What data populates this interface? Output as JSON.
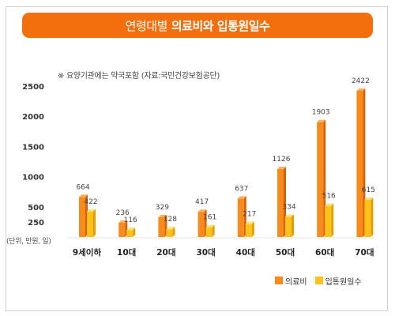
{
  "title": {
    "prefix": "연령대별",
    "emphasis": "의료비와 입통원일수"
  },
  "note": "※ 요양기관에는 약국포함 (자료:국민건강보험공단)",
  "unit_label": "(단위, 만원, 일)",
  "colors": {
    "title_bg": "#f36f0d",
    "series1_front": "#f98a1c",
    "series1_side": "#d8600a",
    "series1_top": "#ffb060",
    "series2_front": "#ffc21a",
    "series2_side": "#e29d00",
    "series2_top": "#ffe07a"
  },
  "chart_data": {
    "type": "bar",
    "categories": [
      "9세이하",
      "10대",
      "20대",
      "30대",
      "40대",
      "50대",
      "60대",
      "70대"
    ],
    "series": [
      {
        "name": "의료비",
        "values": [
          664,
          236,
          329,
          417,
          637,
          1126,
          1903,
          2422
        ]
      },
      {
        "name": "입통원일수",
        "values": [
          422,
          116,
          128,
          161,
          217,
          334,
          516,
          615
        ]
      }
    ],
    "y_ticks": [
      "2500",
      "2000",
      "1500",
      "1000",
      "500",
      "250"
    ],
    "ylim": [
      0,
      2500
    ],
    "grid": false,
    "legend": "bottom-right"
  }
}
